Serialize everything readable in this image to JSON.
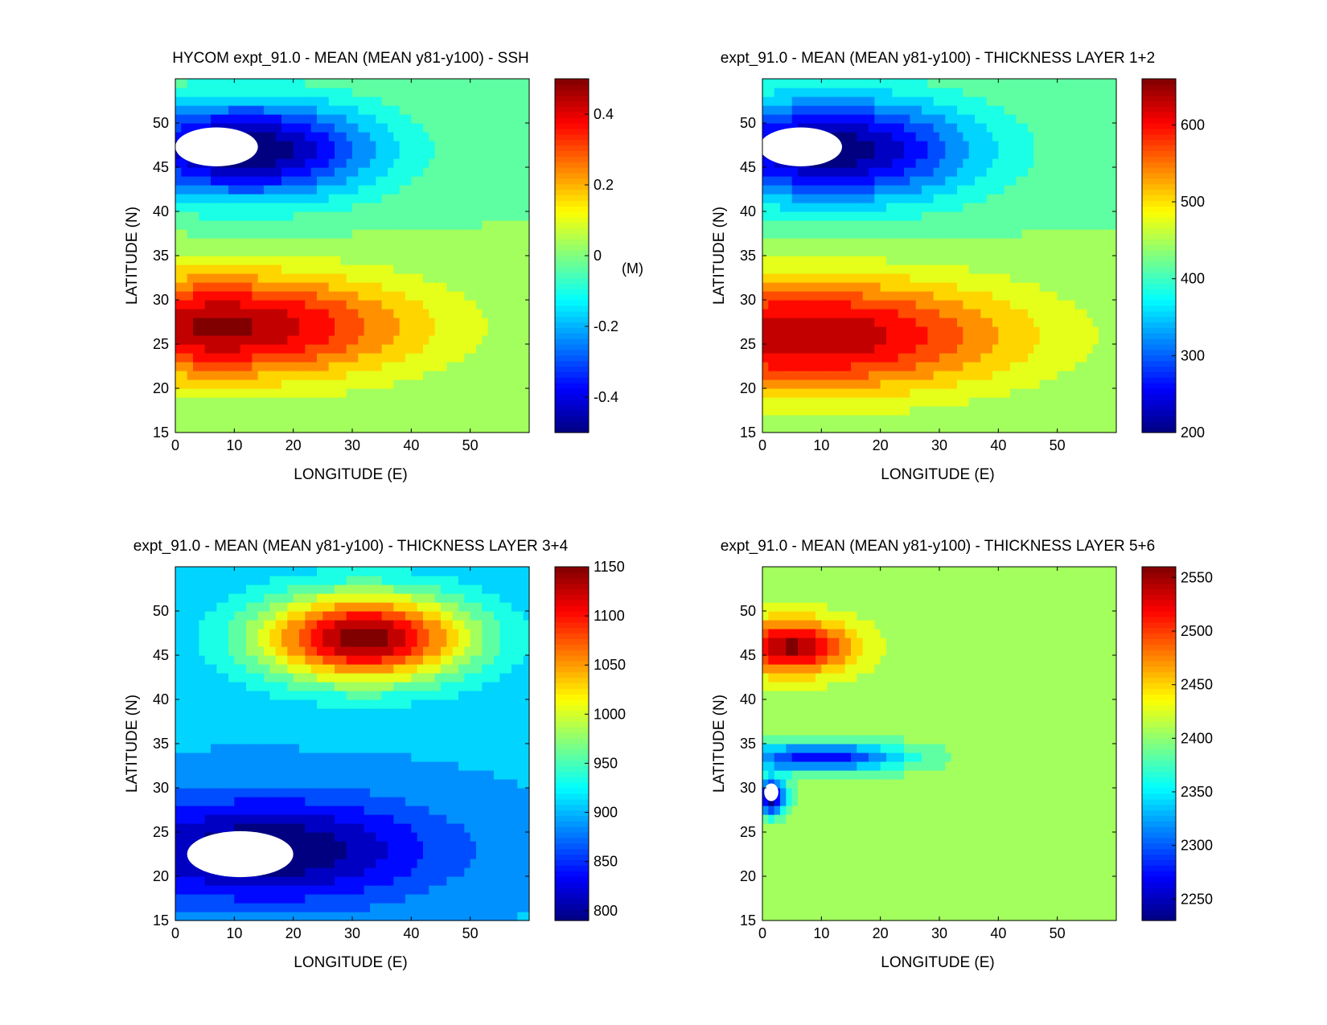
{
  "figure": {
    "panels": [
      {
        "title": "HYCOM expt_91.0 - MEAN (MEAN y81-y100) - SSH",
        "xlabel": "LONGITUDE (E)",
        "ylabel": "LATITUDE (N)",
        "colorbar_unit": "(M)"
      },
      {
        "title": "expt_91.0 - MEAN (MEAN y81-y100) - THICKNESS LAYER 1+2",
        "xlabel": "LONGITUDE (E)",
        "ylabel": "LATITUDE (N)",
        "colorbar_unit": ""
      },
      {
        "title": "expt_91.0 - MEAN (MEAN y81-y100) - THICKNESS LAYER 3+4",
        "xlabel": "LONGITUDE (E)",
        "ylabel": "LATITUDE (N)",
        "colorbar_unit": ""
      },
      {
        "title": "expt_91.0 - MEAN (MEAN y81-y100) - THICKNESS LAYER 5+6",
        "xlabel": "LONGITUDE (E)",
        "ylabel": "LATITUDE (N)",
        "colorbar_unit": ""
      }
    ]
  },
  "chart_data": [
    {
      "type": "heatmap",
      "title": "HYCOM expt_91.0 - MEAN (MEAN y81-y100) - SSH",
      "xlabel": "LONGITUDE (E)",
      "ylabel": "LATITUDE (N)",
      "xlim": [
        0,
        60
      ],
      "ylim": [
        15,
        55
      ],
      "xticks": [
        0,
        10,
        20,
        30,
        40,
        50
      ],
      "yticks": [
        15,
        20,
        25,
        30,
        35,
        40,
        45,
        50
      ],
      "colorbar": {
        "range": [
          -0.5,
          0.5
        ],
        "ticks": [
          -0.4,
          -0.2,
          0,
          0.2,
          0.4
        ],
        "tick_labels": [
          "-0.4",
          "-0.2",
          "0",
          "0.2",
          "0.4"
        ],
        "unit": "(M)"
      },
      "colormap": "jet",
      "contours": true,
      "features": [
        {
          "kind": "gyre",
          "center": [
            12,
            47
          ],
          "spread": [
            22,
            5.5
          ],
          "value": -0.5
        },
        {
          "kind": "gyre",
          "center": [
            8,
            27
          ],
          "spread": [
            32,
            6
          ],
          "value": 0.45
        },
        {
          "kind": "masked",
          "center": [
            7,
            47.3
          ],
          "size": [
            7,
            2.2
          ]
        }
      ]
    },
    {
      "type": "heatmap",
      "title": "expt_91.0 - MEAN (MEAN y81-y100) - THICKNESS LAYER 1+2",
      "xlabel": "LONGITUDE (E)",
      "ylabel": "LATITUDE (N)",
      "xlim": [
        0,
        60
      ],
      "ylim": [
        15,
        55
      ],
      "xticks": [
        0,
        10,
        20,
        30,
        40,
        50
      ],
      "yticks": [
        15,
        20,
        25,
        30,
        35,
        40,
        45,
        50
      ],
      "colorbar": {
        "range": [
          200,
          660
        ],
        "ticks": [
          200,
          300,
          400,
          500,
          600
        ],
        "tick_labels": [
          "200",
          "300",
          "400",
          "500",
          "600"
        ],
        "unit": ""
      },
      "colormap": "jet",
      "contours": true,
      "features": [
        {
          "kind": "gyre",
          "center": [
            12,
            47
          ],
          "spread": [
            24,
            6
          ],
          "value": 210
        },
        {
          "kind": "gyre",
          "center": [
            8,
            26
          ],
          "spread": [
            35,
            6.5
          ],
          "value": 630
        },
        {
          "kind": "masked",
          "center": [
            6.5,
            47.3
          ],
          "size": [
            7,
            2.2
          ]
        }
      ]
    },
    {
      "type": "heatmap",
      "title": "expt_91.0 - MEAN (MEAN y81-y100) - THICKNESS LAYER 3+4",
      "xlabel": "LONGITUDE (E)",
      "ylabel": "LATITUDE (N)",
      "xlim": [
        0,
        60
      ],
      "ylim": [
        15,
        55
      ],
      "xticks": [
        0,
        10,
        20,
        30,
        40,
        50
      ],
      "yticks": [
        15,
        20,
        25,
        30,
        35,
        40,
        45,
        50
      ],
      "colorbar": {
        "range": [
          790,
          1150
        ],
        "ticks": [
          800,
          850,
          900,
          950,
          1000,
          1050,
          1100,
          1150
        ],
        "tick_labels": [
          "800",
          "850",
          "900",
          "950",
          "1000",
          "1050",
          "1100",
          "1150"
        ],
        "unit": ""
      },
      "colormap": "jet",
      "contours": true,
      "features": [
        {
          "kind": "gyre",
          "center": [
            32,
            47
          ],
          "spread": [
            18,
            5
          ],
          "value": 1140
        },
        {
          "kind": "gyre",
          "center": [
            16,
            23
          ],
          "spread": [
            28,
            6
          ],
          "value": 790
        },
        {
          "kind": "masked",
          "center": [
            11,
            22.5
          ],
          "size": [
            9,
            2.6
          ]
        }
      ]
    },
    {
      "type": "heatmap",
      "title": "expt_91.0 - MEAN (MEAN y81-y100) - THICKNESS LAYER 5+6",
      "xlabel": "LONGITUDE (E)",
      "ylabel": "LATITUDE (N)",
      "xlim": [
        0,
        60
      ],
      "ylim": [
        15,
        55
      ],
      "xticks": [
        0,
        10,
        20,
        30,
        40,
        50
      ],
      "yticks": [
        15,
        20,
        25,
        30,
        35,
        40,
        45,
        50
      ],
      "colorbar": {
        "range": [
          2230,
          2560
        ],
        "ticks": [
          2250,
          2300,
          2350,
          2400,
          2450,
          2500,
          2550
        ],
        "tick_labels": [
          "2250",
          "2300",
          "2350",
          "2400",
          "2450",
          "2500",
          "2550"
        ],
        "unit": ""
      },
      "colormap": "jet",
      "contours": true,
      "features": [
        {
          "kind": "gyre",
          "center": [
            5,
            46
          ],
          "spread": [
            10,
            3
          ],
          "value": 2545
        },
        {
          "kind": "gyre",
          "center": [
            10,
            33.5
          ],
          "spread": [
            14,
            1.6
          ],
          "value": 2275
        },
        {
          "kind": "gyre",
          "center": [
            1.5,
            29
          ],
          "spread": [
            2.5,
            2
          ],
          "value": 2240
        },
        {
          "kind": "masked",
          "center": [
            1.5,
            29.5
          ],
          "size": [
            1.2,
            1
          ]
        }
      ]
    }
  ]
}
